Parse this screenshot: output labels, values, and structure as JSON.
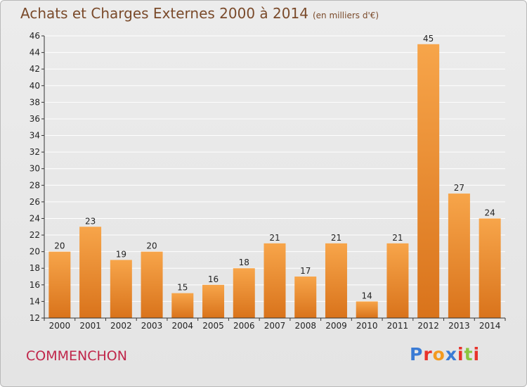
{
  "header": {
    "title": "Achats et Charges Externes 2000 à 2014",
    "unit": "(en milliers d'€)"
  },
  "footer": {
    "commune": "COMMENCHON",
    "brand": "Proxiti",
    "brand_colors": [
      "#3a7bd5",
      "#e8322b",
      "#f39a1f",
      "#3a7bd5",
      "#e8322b",
      "#8bc53f",
      "#e8322b"
    ]
  },
  "colors": {
    "bar_light": "#f7a54a",
    "bar_dark": "#d9731b",
    "grid": "#ffffff",
    "axis": "#333333"
  },
  "chart_data": {
    "type": "bar",
    "categories": [
      "2000",
      "2001",
      "2002",
      "2003",
      "2004",
      "2005",
      "2006",
      "2007",
      "2008",
      "2009",
      "2010",
      "2011",
      "2012",
      "2013",
      "2014"
    ],
    "values": [
      20,
      23,
      19,
      20,
      15,
      16,
      18,
      21,
      17,
      21,
      14,
      21,
      45,
      27,
      24
    ],
    "ylim": [
      12,
      46
    ],
    "yticks": [
      12,
      14,
      16,
      18,
      20,
      22,
      24,
      26,
      28,
      30,
      32,
      34,
      36,
      38,
      40,
      42,
      44,
      46
    ],
    "grid": true
  }
}
